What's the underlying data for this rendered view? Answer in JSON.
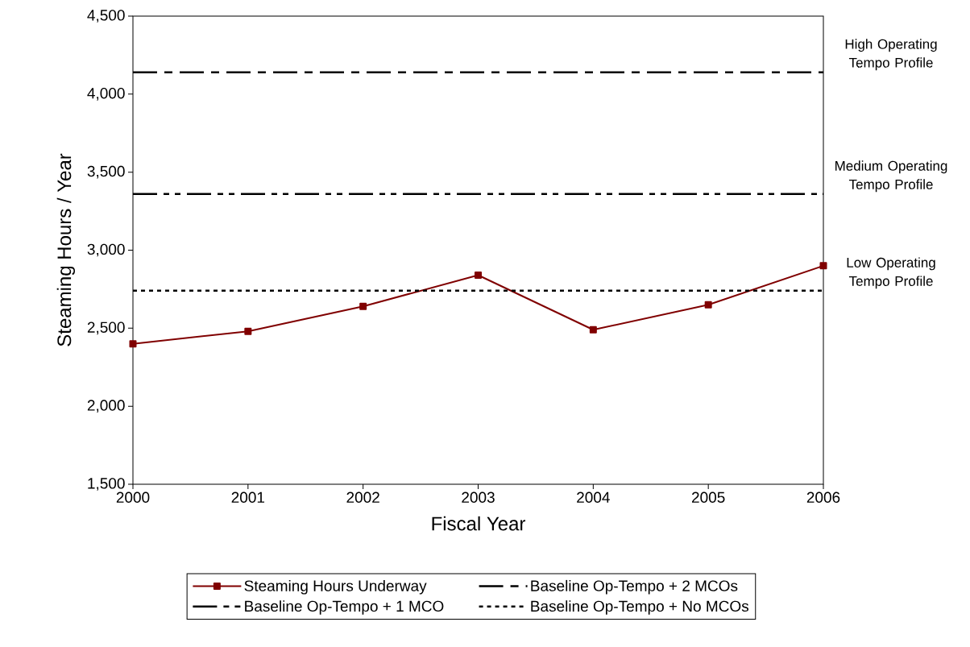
{
  "chart_data": {
    "type": "line",
    "xlabel": "Fiscal Year",
    "ylabel": "Steaming Hours / Year",
    "categories": [
      "2000",
      "2001",
      "2002",
      "2003",
      "2004",
      "2005",
      "2006"
    ],
    "series": [
      {
        "name": "Steaming Hours Underway",
        "color": "#800000",
        "marker": "square",
        "line_style": "solid",
        "values": [
          2400,
          2480,
          2640,
          2840,
          2490,
          2650,
          2900
        ]
      },
      {
        "name": "Baseline Op-Tempo + 2 MCOs",
        "color": "#000000",
        "marker": "none",
        "line_style": "dashed",
        "values": [
          4140,
          4140,
          4140,
          4140,
          4140,
          4140,
          4140
        ]
      },
      {
        "name": "Baseline Op-Tempo + 1 MCO",
        "color": "#000000",
        "marker": "none",
        "line_style": "dashed",
        "values": [
          3360,
          3360,
          3360,
          3360,
          3360,
          3360,
          3360
        ]
      },
      {
        "name": "Baseline Op-Tempo + No MCOs",
        "color": "#000000",
        "marker": "none",
        "line_style": "dotted",
        "values": [
          2740,
          2740,
          2740,
          2740,
          2740,
          2740,
          2740
        ]
      }
    ],
    "ylim": [
      1500,
      4500
    ],
    "yticks": [
      {
        "value": 1500,
        "label": "1,500"
      },
      {
        "value": 2000,
        "label": "2,000"
      },
      {
        "value": 2500,
        "label": "2,500"
      },
      {
        "value": 3000,
        "label": "3,000"
      },
      {
        "value": 3500,
        "label": "3,500"
      },
      {
        "value": 4000,
        "label": "4,000"
      },
      {
        "value": 4500,
        "label": "4,500"
      }
    ],
    "annotations": [
      "High Operating Tempo Profile",
      "Medium Operating Tempo Profile",
      "Low Operating Tempo Profile"
    ],
    "grid": false,
    "legend": "bottom"
  }
}
